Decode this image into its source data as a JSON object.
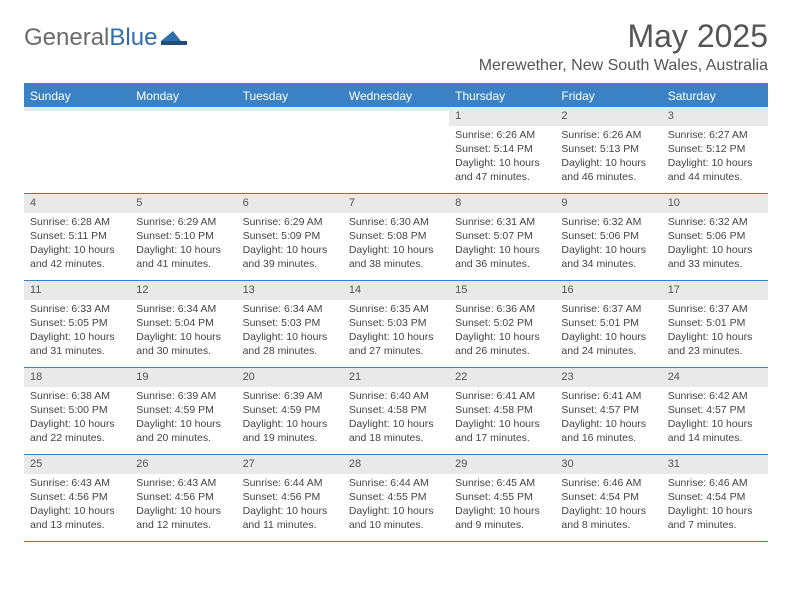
{
  "logo": {
    "text_general": "General",
    "text_blue": "Blue"
  },
  "title": "May 2025",
  "location": "Merewether, New South Wales, Australia",
  "header_bg": "#3b82c4",
  "weekdays": [
    "Sunday",
    "Monday",
    "Tuesday",
    "Wednesday",
    "Thursday",
    "Friday",
    "Saturday"
  ],
  "weeks": [
    [
      {
        "n": "",
        "sr": "",
        "ss": "",
        "dl1": "",
        "dl2": ""
      },
      {
        "n": "",
        "sr": "",
        "ss": "",
        "dl1": "",
        "dl2": ""
      },
      {
        "n": "",
        "sr": "",
        "ss": "",
        "dl1": "",
        "dl2": ""
      },
      {
        "n": "",
        "sr": "",
        "ss": "",
        "dl1": "",
        "dl2": ""
      },
      {
        "n": "1",
        "sr": "Sunrise: 6:26 AM",
        "ss": "Sunset: 5:14 PM",
        "dl1": "Daylight: 10 hours",
        "dl2": "and 47 minutes."
      },
      {
        "n": "2",
        "sr": "Sunrise: 6:26 AM",
        "ss": "Sunset: 5:13 PM",
        "dl1": "Daylight: 10 hours",
        "dl2": "and 46 minutes."
      },
      {
        "n": "3",
        "sr": "Sunrise: 6:27 AM",
        "ss": "Sunset: 5:12 PM",
        "dl1": "Daylight: 10 hours",
        "dl2": "and 44 minutes."
      }
    ],
    [
      {
        "n": "4",
        "sr": "Sunrise: 6:28 AM",
        "ss": "Sunset: 5:11 PM",
        "dl1": "Daylight: 10 hours",
        "dl2": "and 42 minutes."
      },
      {
        "n": "5",
        "sr": "Sunrise: 6:29 AM",
        "ss": "Sunset: 5:10 PM",
        "dl1": "Daylight: 10 hours",
        "dl2": "and 41 minutes."
      },
      {
        "n": "6",
        "sr": "Sunrise: 6:29 AM",
        "ss": "Sunset: 5:09 PM",
        "dl1": "Daylight: 10 hours",
        "dl2": "and 39 minutes."
      },
      {
        "n": "7",
        "sr": "Sunrise: 6:30 AM",
        "ss": "Sunset: 5:08 PM",
        "dl1": "Daylight: 10 hours",
        "dl2": "and 38 minutes."
      },
      {
        "n": "8",
        "sr": "Sunrise: 6:31 AM",
        "ss": "Sunset: 5:07 PM",
        "dl1": "Daylight: 10 hours",
        "dl2": "and 36 minutes."
      },
      {
        "n": "9",
        "sr": "Sunrise: 6:32 AM",
        "ss": "Sunset: 5:06 PM",
        "dl1": "Daylight: 10 hours",
        "dl2": "and 34 minutes."
      },
      {
        "n": "10",
        "sr": "Sunrise: 6:32 AM",
        "ss": "Sunset: 5:06 PM",
        "dl1": "Daylight: 10 hours",
        "dl2": "and 33 minutes."
      }
    ],
    [
      {
        "n": "11",
        "sr": "Sunrise: 6:33 AM",
        "ss": "Sunset: 5:05 PM",
        "dl1": "Daylight: 10 hours",
        "dl2": "and 31 minutes."
      },
      {
        "n": "12",
        "sr": "Sunrise: 6:34 AM",
        "ss": "Sunset: 5:04 PM",
        "dl1": "Daylight: 10 hours",
        "dl2": "and 30 minutes."
      },
      {
        "n": "13",
        "sr": "Sunrise: 6:34 AM",
        "ss": "Sunset: 5:03 PM",
        "dl1": "Daylight: 10 hours",
        "dl2": "and 28 minutes."
      },
      {
        "n": "14",
        "sr": "Sunrise: 6:35 AM",
        "ss": "Sunset: 5:03 PM",
        "dl1": "Daylight: 10 hours",
        "dl2": "and 27 minutes."
      },
      {
        "n": "15",
        "sr": "Sunrise: 6:36 AM",
        "ss": "Sunset: 5:02 PM",
        "dl1": "Daylight: 10 hours",
        "dl2": "and 26 minutes."
      },
      {
        "n": "16",
        "sr": "Sunrise: 6:37 AM",
        "ss": "Sunset: 5:01 PM",
        "dl1": "Daylight: 10 hours",
        "dl2": "and 24 minutes."
      },
      {
        "n": "17",
        "sr": "Sunrise: 6:37 AM",
        "ss": "Sunset: 5:01 PM",
        "dl1": "Daylight: 10 hours",
        "dl2": "and 23 minutes."
      }
    ],
    [
      {
        "n": "18",
        "sr": "Sunrise: 6:38 AM",
        "ss": "Sunset: 5:00 PM",
        "dl1": "Daylight: 10 hours",
        "dl2": "and 22 minutes."
      },
      {
        "n": "19",
        "sr": "Sunrise: 6:39 AM",
        "ss": "Sunset: 4:59 PM",
        "dl1": "Daylight: 10 hours",
        "dl2": "and 20 minutes."
      },
      {
        "n": "20",
        "sr": "Sunrise: 6:39 AM",
        "ss": "Sunset: 4:59 PM",
        "dl1": "Daylight: 10 hours",
        "dl2": "and 19 minutes."
      },
      {
        "n": "21",
        "sr": "Sunrise: 6:40 AM",
        "ss": "Sunset: 4:58 PM",
        "dl1": "Daylight: 10 hours",
        "dl2": "and 18 minutes."
      },
      {
        "n": "22",
        "sr": "Sunrise: 6:41 AM",
        "ss": "Sunset: 4:58 PM",
        "dl1": "Daylight: 10 hours",
        "dl2": "and 17 minutes."
      },
      {
        "n": "23",
        "sr": "Sunrise: 6:41 AM",
        "ss": "Sunset: 4:57 PM",
        "dl1": "Daylight: 10 hours",
        "dl2": "and 16 minutes."
      },
      {
        "n": "24",
        "sr": "Sunrise: 6:42 AM",
        "ss": "Sunset: 4:57 PM",
        "dl1": "Daylight: 10 hours",
        "dl2": "and 14 minutes."
      }
    ],
    [
      {
        "n": "25",
        "sr": "Sunrise: 6:43 AM",
        "ss": "Sunset: 4:56 PM",
        "dl1": "Daylight: 10 hours",
        "dl2": "and 13 minutes."
      },
      {
        "n": "26",
        "sr": "Sunrise: 6:43 AM",
        "ss": "Sunset: 4:56 PM",
        "dl1": "Daylight: 10 hours",
        "dl2": "and 12 minutes."
      },
      {
        "n": "27",
        "sr": "Sunrise: 6:44 AM",
        "ss": "Sunset: 4:56 PM",
        "dl1": "Daylight: 10 hours",
        "dl2": "and 11 minutes."
      },
      {
        "n": "28",
        "sr": "Sunrise: 6:44 AM",
        "ss": "Sunset: 4:55 PM",
        "dl1": "Daylight: 10 hours",
        "dl2": "and 10 minutes."
      },
      {
        "n": "29",
        "sr": "Sunrise: 6:45 AM",
        "ss": "Sunset: 4:55 PM",
        "dl1": "Daylight: 10 hours",
        "dl2": "and 9 minutes."
      },
      {
        "n": "30",
        "sr": "Sunrise: 6:46 AM",
        "ss": "Sunset: 4:54 PM",
        "dl1": "Daylight: 10 hours",
        "dl2": "and 8 minutes."
      },
      {
        "n": "31",
        "sr": "Sunrise: 6:46 AM",
        "ss": "Sunset: 4:54 PM",
        "dl1": "Daylight: 10 hours",
        "dl2": "and 7 minutes."
      }
    ]
  ]
}
